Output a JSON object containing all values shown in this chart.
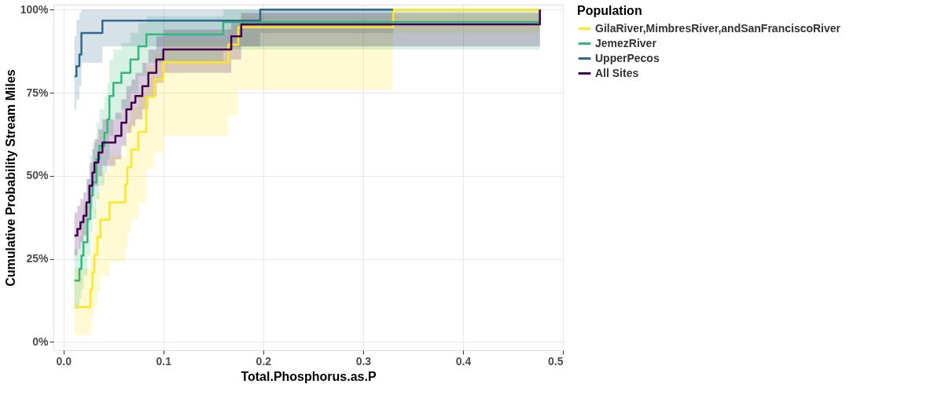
{
  "chart_data": {
    "type": "step",
    "xlabel": "Total.Phosphorus.as.P",
    "ylabel": "Cumulative Probability Stream Miles",
    "legend_title": "Population",
    "legend": "right",
    "grid": true,
    "line_style": "solid",
    "marker": "none",
    "xlim": [
      -0.01,
      0.5
    ],
    "ylim": [
      -2.5,
      101.5
    ],
    "xticks": [
      {
        "value": 0,
        "label": "0.0"
      },
      {
        "value": 0.1,
        "label": "0.1"
      },
      {
        "value": 0.2,
        "label": "0.2"
      },
      {
        "value": 0.3,
        "label": "0.3"
      },
      {
        "value": 0.4,
        "label": "0.4"
      },
      {
        "value": 0.5,
        "label": "0.5"
      }
    ],
    "yticks": [
      {
        "value": 0,
        "label": "0%"
      },
      {
        "value": 25,
        "label": "25%"
      },
      {
        "value": 50,
        "label": "50%"
      },
      {
        "value": 75,
        "label": "75%"
      },
      {
        "value": 100,
        "label": "100%"
      }
    ],
    "series": [
      {
        "name": "GilaRiver,MimbresRiver,andSanFranciscoRiver",
        "color": "#fde725",
        "x": [
          0.011,
          0.027,
          0.029,
          0.031,
          0.034,
          0.037,
          0.046,
          0.062,
          0.064,
          0.068,
          0.075,
          0.083,
          0.091,
          0.1,
          0.165,
          0.175,
          0.33,
          0.477
        ],
        "values": [
          10.5,
          15.8,
          21,
          26.3,
          31.6,
          36.8,
          42,
          47.4,
          52.6,
          57.9,
          63.2,
          73.7,
          78.9,
          84.2,
          89.5,
          94.7,
          100,
          100
        ],
        "lower": [
          2,
          4,
          8,
          11,
          15,
          20,
          24,
          28,
          33,
          37,
          42,
          52,
          57,
          62,
          68,
          76,
          93,
          93
        ],
        "upper": [
          22,
          28,
          34,
          40,
          45,
          51,
          56,
          61,
          66,
          71,
          75,
          83,
          87,
          91,
          95,
          98,
          100,
          100
        ]
      },
      {
        "name": "JemezRiver",
        "color": "#35b779",
        "x": [
          0.011,
          0.016,
          0.018,
          0.02,
          0.024,
          0.027,
          0.029,
          0.033,
          0.036,
          0.041,
          0.044,
          0.046,
          0.05,
          0.058,
          0.067,
          0.075,
          0.083,
          0.16,
          0.477
        ],
        "values": [
          18.5,
          22,
          26,
          30,
          37,
          44,
          48,
          55,
          59,
          63,
          67,
          74,
          78,
          81,
          85,
          89,
          92.6,
          96.3,
          100
        ],
        "lower": [
          10,
          13,
          16,
          20,
          26,
          33,
          37,
          43,
          47,
          51,
          55,
          62,
          67,
          70,
          75,
          80,
          84,
          88,
          100
        ],
        "upper": [
          28,
          32,
          37,
          41,
          49,
          56,
          60,
          66,
          70,
          74,
          78,
          85,
          88,
          90,
          93,
          96,
          98,
          100,
          100
        ]
      },
      {
        "name": "UpperPecos",
        "color": "#31688e",
        "x": [
          0.011,
          0.013,
          0.016,
          0.018,
          0.039,
          0.197,
          0.33
        ],
        "values": [
          80,
          83,
          86.5,
          93,
          96.7,
          100,
          100
        ],
        "lower": [
          70,
          73,
          77,
          84,
          89,
          93,
          93
        ],
        "upper": [
          92,
          97,
          99,
          100,
          100,
          100,
          100
        ]
      },
      {
        "name": "All Sites",
        "color": "#440154",
        "x": [
          0.011,
          0.014,
          0.017,
          0.02,
          0.023,
          0.026,
          0.029,
          0.031,
          0.035,
          0.039,
          0.052,
          0.058,
          0.063,
          0.068,
          0.072,
          0.079,
          0.085,
          0.093,
          0.1,
          0.168,
          0.178,
          0.477
        ],
        "values": [
          32,
          34,
          36,
          38,
          42,
          47,
          51,
          54,
          57,
          60,
          62,
          66,
          70,
          72,
          74,
          77,
          81,
          85,
          88,
          92,
          95.6,
          100
        ],
        "lower": [
          26,
          28,
          30,
          32,
          36,
          40,
          44,
          47,
          50,
          53,
          55,
          59,
          63,
          65,
          67,
          70,
          74,
          78,
          81,
          85,
          89,
          100
        ],
        "upper": [
          39,
          41,
          43,
          45,
          49,
          54,
          58,
          61,
          64,
          67,
          69,
          73,
          77,
          79,
          81,
          84,
          88,
          92,
          94,
          97,
          99,
          100
        ]
      }
    ]
  }
}
